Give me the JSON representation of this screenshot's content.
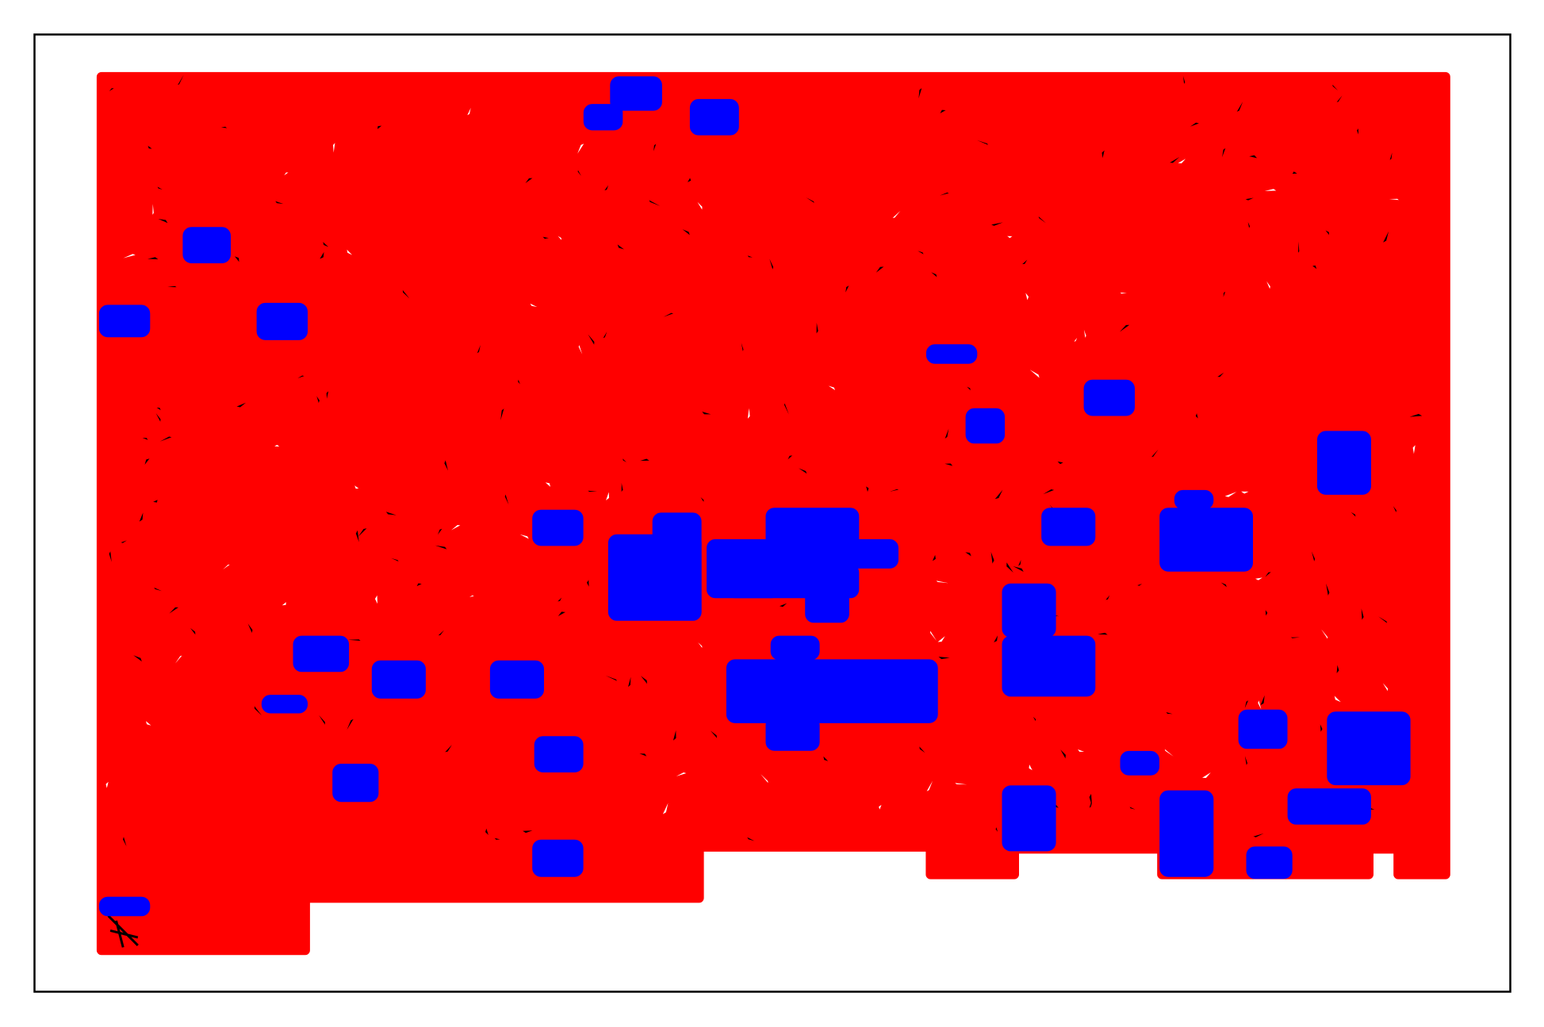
{
  "network": {
    "node_color": "#ff0000",
    "cluster_color": "#0000ff",
    "edge_color": "#000000"
  }
}
